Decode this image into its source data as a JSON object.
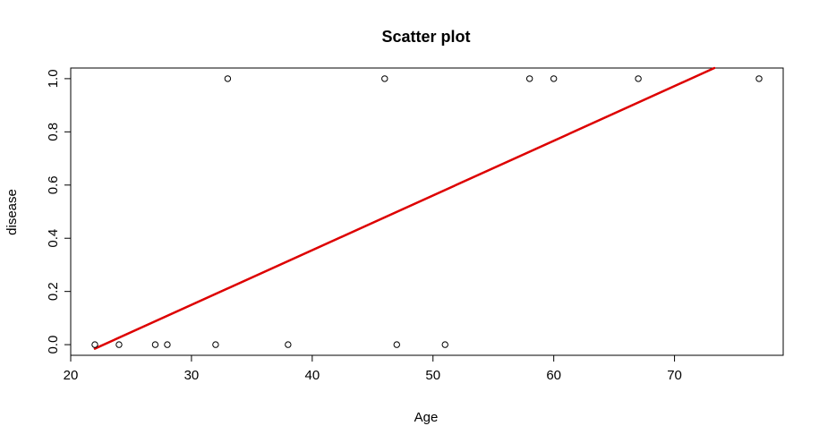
{
  "chart_data": {
    "type": "scatter",
    "title": "Scatter plot",
    "xlabel": "Age",
    "ylabel": "disease",
    "xlim": [
      20,
      79
    ],
    "ylim": [
      -0.04,
      1.04
    ],
    "xticks": [
      "20",
      "30",
      "40",
      "50",
      "60",
      "70"
    ],
    "yticks": [
      "0.0",
      "0.2",
      "0.4",
      "0.6",
      "0.8",
      "1.0"
    ],
    "grid": false,
    "points": [
      {
        "x": 22,
        "y": 0
      },
      {
        "x": 24,
        "y": 0
      },
      {
        "x": 27,
        "y": 0
      },
      {
        "x": 28,
        "y": 0
      },
      {
        "x": 32,
        "y": 0
      },
      {
        "x": 33,
        "y": 1
      },
      {
        "x": 38,
        "y": 0
      },
      {
        "x": 46,
        "y": 1
      },
      {
        "x": 47,
        "y": 0
      },
      {
        "x": 51,
        "y": 0
      },
      {
        "x": 58,
        "y": 1
      },
      {
        "x": 60,
        "y": 1
      },
      {
        "x": 67,
        "y": 1
      },
      {
        "x": 77,
        "y": 1
      }
    ],
    "fit_line": {
      "x": [
        22,
        73.3
      ],
      "y": [
        -0.015,
        1.04
      ],
      "color": "#dd0000"
    },
    "point_color": "#000000"
  }
}
